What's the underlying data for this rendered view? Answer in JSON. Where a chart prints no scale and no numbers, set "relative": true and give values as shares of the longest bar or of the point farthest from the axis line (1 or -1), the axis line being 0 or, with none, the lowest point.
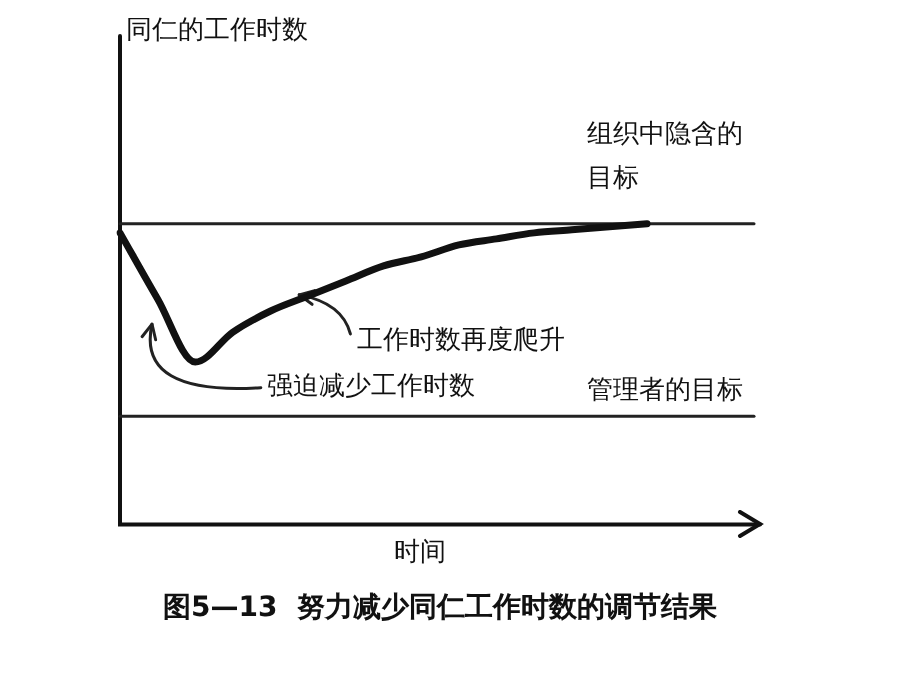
{
  "chart_data": {
    "type": "line",
    "relative": true,
    "title": "图5—13  努力减少同仁工作时数的调节结果",
    "xlabel": "时间",
    "categories": [
      null,
      null,
      null,
      null,
      null,
      null,
      null,
      null,
      null,
      null,
      null,
      null,
      null,
      null,
      null,
      null,
      null,
      null
    ],
    "series": [
      {
        "color": "#111111",
        "values": [
          0.97,
          0.75,
          0.54,
          0.64,
          0.71,
          0.76,
          0.81,
          0.86,
          0.89,
          0.93,
          0.95,
          0.97,
          0.98,
          0.99,
          1,
          null,
          null,
          null
        ]
      }
    ],
    "ref_lines": [
      {
        "axis": "y",
        "value": 1,
        "label": "组织中隐含的目标",
        "color": "#222222"
      },
      {
        "axis": "y",
        "value": 0.36,
        "label": "管理者的目标",
        "color": "#222222"
      }
    ],
    "annotations": [
      "同仁的工作时数",
      "工作时数再度爬升",
      "强迫减少工作时数"
    ],
    "marker": "none",
    "line_style": "solid",
    "legend": false
  }
}
